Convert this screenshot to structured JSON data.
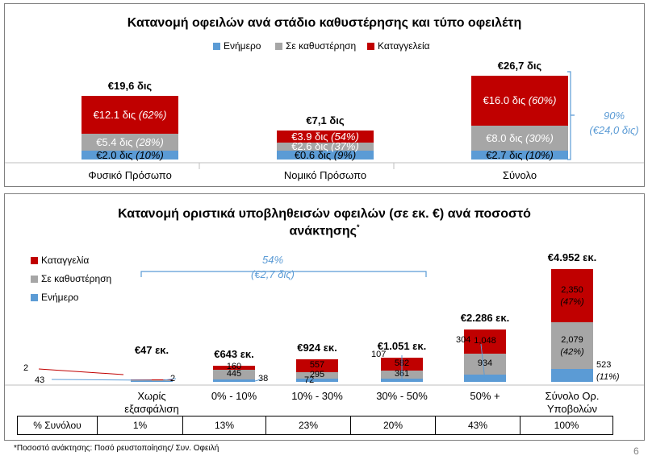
{
  "colors": {
    "current": "#5b9bd5",
    "overdue": "#a6a6a6",
    "terminated": "#c00000",
    "note": "#5b9bd5"
  },
  "top": {
    "title": "Κατανομή οφειλών ανά στάδιο καθυστέρησης και τύπο οφειλέτη",
    "legend": [
      "Ενήμερο",
      "Σε καθυστέρηση",
      "Καταγγελεία"
    ],
    "bracket_note": {
      "pct": "90%",
      "amount": "(€24,0 δις)"
    }
  },
  "bottom": {
    "title_line1": "Κατανομή οριστικά υποβληθεισών οφειλών (σε εκ. €) ανά ποσοστό",
    "title_line2": "ανάκτησης",
    "title_mark": "*",
    "legend": [
      "Καταγγελία",
      "Σε καθυστέρηση",
      "Ενήμερο"
    ],
    "bracket_note": {
      "pct": "54%",
      "amount": "(€2,7 δις)"
    },
    "table_header": "% Συνόλου",
    "footnote": "*Ποσοστό ανάκτησης: Ποσό ρευστοποίησης/ Συν. Οφειλή",
    "page_number": "6"
  },
  "chart_data": [
    {
      "type": "bar",
      "stacked": true,
      "title": "Κατανομή οφειλών ανά στάδιο καθυστέρησης και τύπο οφειλέτη",
      "unit": "δις €",
      "categories": [
        "Φυσικό Πρόσωπο",
        "Νομικό Πρόσωπο",
        "Σύνολο"
      ],
      "totals": [
        "€19,6 δις",
        "€7,1 δις",
        "€26,7 δις"
      ],
      "series": [
        {
          "name": "Ενήμερο",
          "values": [
            2.0,
            0.6,
            2.7
          ],
          "labels": [
            "€2.0 δις",
            "€0.6 δις",
            "€2.7 δις"
          ],
          "pct_labels": [
            "(10%)",
            "(9%)",
            "(10%)"
          ]
        },
        {
          "name": "Σε καθυστέρηση",
          "values": [
            5.4,
            2.6,
            8.0
          ],
          "labels": [
            "€5.4 δις",
            "€2.6 δις",
            "€8.0 δις"
          ],
          "pct_labels": [
            "(28%)",
            "(37%)",
            "(30%)"
          ]
        },
        {
          "name": "Καταγγελεία",
          "values": [
            12.1,
            3.9,
            16.0
          ],
          "labels": [
            "€12.1 δις",
            "€3.9 δις",
            "€16.0 δις"
          ],
          "pct_labels": [
            "(62%)",
            "(54%)",
            "(60%)"
          ]
        }
      ]
    },
    {
      "type": "bar",
      "stacked": true,
      "title": "Κατανομή οριστικά υποβληθεισών οφειλών (σε εκ. €) ανά ποσοστό ανάκτησης*",
      "unit": "εκ. €",
      "categories": [
        "Χωρίς εξασφάλιση",
        "0% - 10%",
        "10% - 30%",
        "30% - 50%",
        "50% +",
        "Σύνολο Ορ. Υποβολών"
      ],
      "category_lines": [
        [
          "Χωρίς",
          "εξασφάλιση"
        ],
        [
          "0% - 10%"
        ],
        [
          "10% - 30%"
        ],
        [
          "30% - 50%"
        ],
        [
          "50% +"
        ],
        [
          "Σύνολο Ορ.",
          "Υποβολών"
        ]
      ],
      "totals": [
        "€47 εκ.",
        "€643 εκ.",
        "€924 εκ.",
        "€1.051 εκ.",
        "€2.286 εκ.",
        "€4.952 εκ."
      ],
      "series": [
        {
          "name": "Ενήμερο",
          "values": [
            2,
            38,
            72,
            107,
            304,
            523
          ],
          "labels": [
            "2",
            "38",
            "72",
            "107",
            "304",
            "523"
          ]
        },
        {
          "name": "Σε καθυστέρηση",
          "values": [
            43,
            445,
            295,
            361,
            934,
            2079
          ],
          "labels": [
            "43",
            "445",
            "295",
            "361",
            "934",
            "2,079"
          ]
        },
        {
          "name": "Καταγγελία",
          "values": [
            2,
            160,
            557,
            582,
            1048,
            2350
          ],
          "labels": [
            "2",
            "160",
            "557",
            "582",
            "1,048",
            "2,350"
          ]
        }
      ],
      "total_pct_labels": {
        "Καταγγελία": "(47%)",
        "Σε καθυστέρηση": "(42%)",
        "Ενήμερο": "(11%)"
      },
      "share_of_total": [
        "1%",
        "13%",
        "23%",
        "20%",
        "43%",
        "100%"
      ]
    }
  ]
}
